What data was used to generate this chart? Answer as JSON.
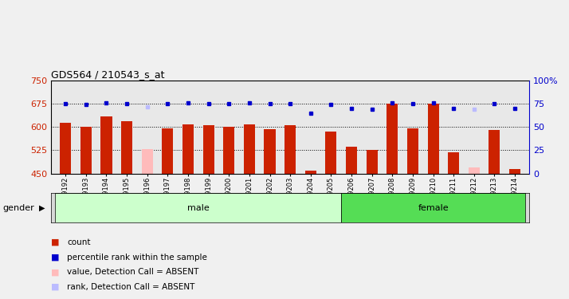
{
  "title": "GDS564 / 210543_s_at",
  "samples": [
    "GSM19192",
    "GSM19193",
    "GSM19194",
    "GSM19195",
    "GSM19196",
    "GSM19197",
    "GSM19198",
    "GSM19199",
    "GSM19200",
    "GSM19201",
    "GSM19202",
    "GSM19203",
    "GSM19204",
    "GSM19205",
    "GSM19206",
    "GSM19207",
    "GSM19208",
    "GSM19209",
    "GSM19210",
    "GSM19211",
    "GSM19212",
    "GSM19213",
    "GSM19214"
  ],
  "bar_values": [
    615,
    600,
    635,
    620,
    528,
    597,
    608,
    605,
    600,
    610,
    594,
    607,
    458,
    585,
    537,
    525,
    675,
    597,
    675,
    519,
    470,
    590,
    463
  ],
  "bar_absent": [
    false,
    false,
    false,
    false,
    true,
    false,
    false,
    false,
    false,
    false,
    false,
    false,
    false,
    false,
    false,
    false,
    false,
    false,
    false,
    false,
    true,
    false,
    false
  ],
  "rank_values": [
    75,
    74,
    76,
    75,
    72,
    75,
    76,
    75,
    75,
    76,
    75,
    75,
    65,
    74,
    70,
    69,
    76,
    75,
    76,
    70,
    69,
    75,
    70
  ],
  "rank_absent": [
    false,
    false,
    false,
    false,
    true,
    false,
    false,
    false,
    false,
    false,
    false,
    false,
    false,
    false,
    false,
    false,
    false,
    false,
    false,
    false,
    true,
    false,
    false
  ],
  "gender": [
    "male",
    "male",
    "male",
    "male",
    "male",
    "male",
    "male",
    "male",
    "male",
    "male",
    "male",
    "male",
    "male",
    "male",
    "female",
    "female",
    "female",
    "female",
    "female",
    "female",
    "female",
    "female",
    "female"
  ],
  "bar_color_normal": "#cc2200",
  "bar_color_absent": "#ffbbbb",
  "dot_color_normal": "#0000cc",
  "dot_color_absent": "#bbbbff",
  "ylim_left": [
    450,
    750
  ],
  "ylim_right": [
    0,
    100
  ],
  "yticks_left": [
    450,
    525,
    600,
    675,
    750
  ],
  "yticks_right": [
    0,
    25,
    50,
    75,
    100
  ],
  "grid_lines": [
    525,
    600,
    675
  ],
  "plot_bg": "#e8e8e8",
  "fig_bg": "#f0f0f0",
  "male_color": "#ccffcc",
  "female_color": "#55dd55",
  "gender_bg": "#d8d8d8"
}
